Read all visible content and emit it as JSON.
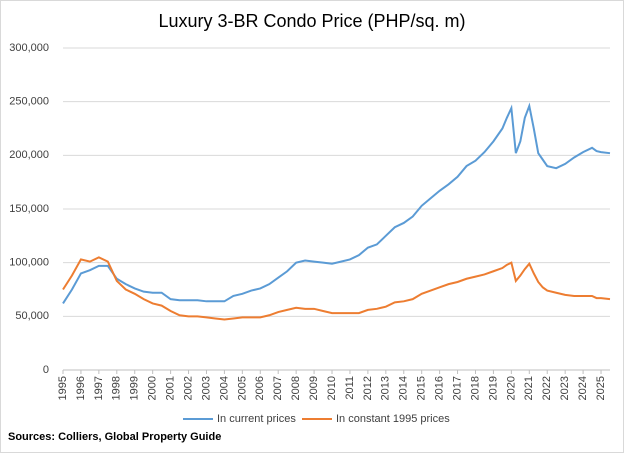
{
  "chart_data": {
    "type": "line",
    "title": "Luxury 3-BR Condo Price (PHP/sq. m)",
    "x": [
      1995,
      1995.5,
      1996,
      1996.5,
      1997,
      1997.5,
      1998,
      1998.5,
      1999,
      1999.5,
      2000,
      2000.5,
      2001,
      2001.5,
      2002,
      2002.5,
      2003,
      2003.5,
      2004,
      2004.5,
      2005,
      2005.5,
      2006,
      2006.5,
      2007,
      2007.5,
      2008,
      2008.5,
      2009,
      2009.5,
      2010,
      2010.5,
      2011,
      2011.5,
      2012,
      2012.5,
      2013,
      2013.5,
      2014,
      2014.5,
      2015,
      2015.5,
      2016,
      2016.5,
      2017,
      2017.5,
      2018,
      2018.5,
      2019,
      2019.5,
      2019.75,
      2020,
      2020.25,
      2020.5,
      2020.75,
      2021,
      2021.25,
      2021.5,
      2021.75,
      2022,
      2022.5,
      2023,
      2023.5,
      2024,
      2024.5,
      2024.75,
      2025,
      2025.5
    ],
    "series": [
      {
        "name": "In current prices",
        "color": "#5b9bd5",
        "values": [
          62000,
          75000,
          90000,
          93000,
          97000,
          97000,
          85000,
          80000,
          76000,
          73000,
          72000,
          72000,
          66000,
          65000,
          65000,
          65000,
          64000,
          64000,
          64000,
          69000,
          71000,
          74000,
          76000,
          80000,
          86000,
          92000,
          100000,
          102000,
          101000,
          100000,
          99000,
          101000,
          103000,
          107000,
          114000,
          117000,
          125000,
          133000,
          137000,
          143000,
          153000,
          160000,
          167000,
          173000,
          180000,
          190000,
          195000,
          203000,
          213000,
          225000,
          235000,
          244000,
          202000,
          213000,
          235000,
          246000,
          225000,
          202000,
          196000,
          190000,
          188000,
          192000,
          198000,
          203000,
          207000,
          204000,
          203000,
          202000
        ]
      },
      {
        "name": "In constant 1995 prices",
        "color": "#ed7d31",
        "values": [
          75000,
          88000,
          103000,
          101000,
          105000,
          101000,
          83000,
          75000,
          71000,
          66000,
          62000,
          60000,
          55000,
          51000,
          50000,
          50000,
          49000,
          48000,
          47000,
          48000,
          49000,
          49000,
          49000,
          51000,
          54000,
          56000,
          58000,
          57000,
          57000,
          55000,
          53000,
          53000,
          53000,
          53000,
          56000,
          57000,
          59000,
          63000,
          64000,
          66000,
          71000,
          74000,
          77000,
          80000,
          82000,
          85000,
          87000,
          89000,
          92000,
          95000,
          98000,
          100000,
          83000,
          88000,
          94000,
          99000,
          90000,
          82000,
          77000,
          74000,
          72000,
          70000,
          69000,
          69000,
          69000,
          67000,
          67000,
          66000
        ]
      }
    ],
    "xlim": [
      1995,
      2025.5
    ],
    "xticks": [
      1995,
      1996,
      1997,
      1998,
      1999,
      2000,
      2001,
      2002,
      2003,
      2004,
      2005,
      2006,
      2007,
      2008,
      2009,
      2010,
      2011,
      2012,
      2013,
      2014,
      2015,
      2016,
      2017,
      2018,
      2019,
      2020,
      2021,
      2022,
      2023,
      2024,
      2025
    ],
    "ylim": [
      0,
      300000
    ],
    "yticks": [
      0,
      {
        "value": 50000,
        "label": "50,000"
      },
      {
        "value": 100000,
        "label": "100,000"
      },
      {
        "value": 150000,
        "label": "150,000"
      },
      {
        "value": 200000,
        "label": "200,000"
      },
      {
        "value": 250000,
        "label": "250,000"
      },
      {
        "value": 300000,
        "label": "300,000"
      }
    ],
    "grid": true,
    "legend": "bottom",
    "source": "Sources: Colliers, Global Property Guide"
  }
}
